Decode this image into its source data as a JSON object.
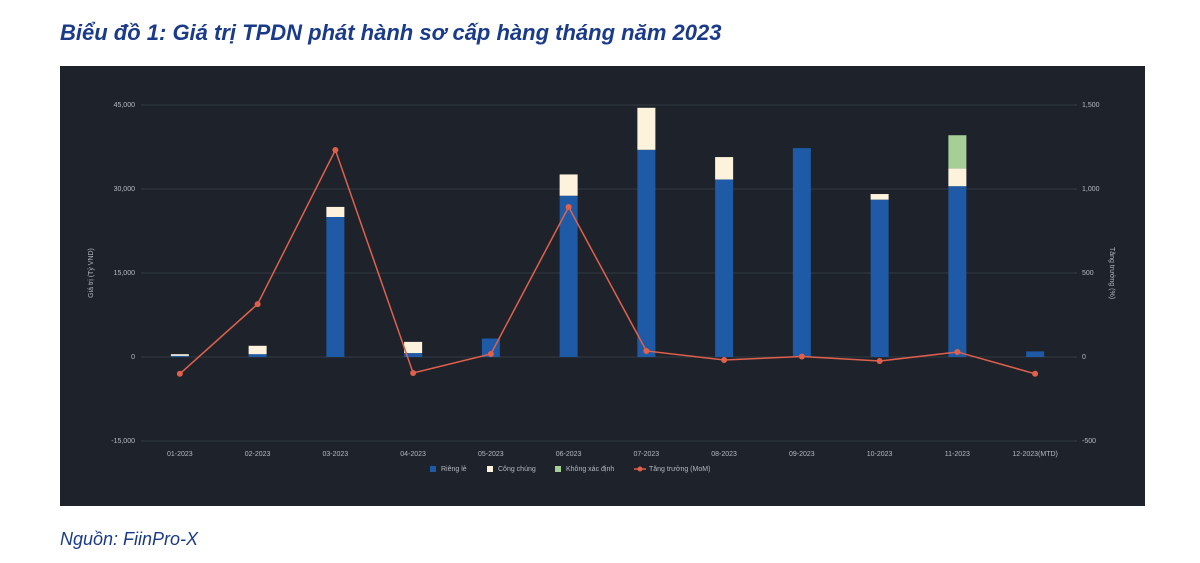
{
  "chart_data": {
    "type": "bar",
    "title": "Biểu đồ 1: Giá trị TPDN phát hành sơ cấp hàng tháng năm 2023",
    "source": "Nguồn: FiinPro-X",
    "y_label": "Giá trị (Tỷ VND)",
    "y2_label": "Tăng trưởng (%)",
    "stacked": true,
    "categories": [
      "01-2023",
      "02-2023",
      "03-2023",
      "04-2023",
      "05-2023",
      "06-2023",
      "07-2023",
      "08-2023",
      "09-2023",
      "10-2023",
      "11-2023",
      "12-2023(MTD)"
    ],
    "series": [
      {
        "name": "Riêng lẻ",
        "color": "#1f5aa6",
        "values": [
          200,
          500,
          25000,
          700,
          3300,
          28800,
          37000,
          31700,
          37300,
          28100,
          30500,
          1000
        ]
      },
      {
        "name": "Công chúng",
        "color": "#fdf3dc",
        "values": [
          300,
          1500,
          1800,
          2000,
          0,
          3800,
          7500,
          4000,
          0,
          1000,
          3200,
          0
        ]
      },
      {
        "name": "Không xác định",
        "color": "#a6cf98",
        "values": [
          0,
          0,
          0,
          0,
          0,
          0,
          0,
          0,
          0,
          0,
          5900,
          0
        ]
      },
      {
        "name": "Tăng trưởng (MoM)",
        "type": "line",
        "axis": "y2",
        "color": "#e0604c",
        "values": [
          -100,
          315,
          1232,
          -95,
          18,
          893,
          36,
          -18,
          3,
          -24,
          30,
          -100
        ]
      }
    ],
    "ylim": [
      -15000,
      45000
    ],
    "yticks": [
      {
        "value": -15000,
        "label": "-15,000"
      },
      0,
      {
        "value": 15000,
        "label": "15,000"
      },
      {
        "value": 30000,
        "label": "30,000"
      },
      {
        "value": 45000,
        "label": "45,000"
      }
    ],
    "y2lim": [
      -500,
      1500
    ],
    "y2ticks": [
      -500,
      0,
      500,
      {
        "value": 1000,
        "label": "1,000"
      },
      {
        "value": 1500,
        "label": "1,500"
      }
    ],
    "grid": true
  }
}
